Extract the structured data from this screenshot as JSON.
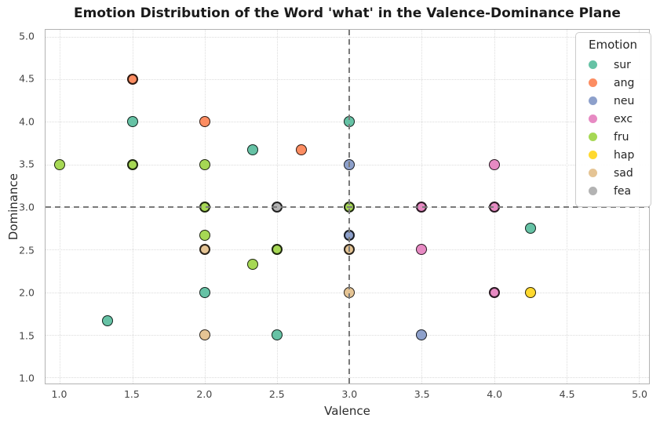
{
  "chart_data": {
    "type": "scatter",
    "title": "Emotion Distribution of the Word 'what' in the Valence-Dominance Plane",
    "xlabel": "Valence",
    "ylabel": "Dominance",
    "xlim": [
      0.9,
      5.07
    ],
    "ylim": [
      0.93,
      5.08
    ],
    "xticks": [
      "1.0",
      "1.5",
      "2.0",
      "2.5",
      "3.0",
      "3.5",
      "4.0",
      "4.5",
      "5.0"
    ],
    "yticks": [
      "1.0",
      "1.5",
      "2.0",
      "2.5",
      "3.0",
      "3.5",
      "4.0",
      "4.5",
      "5.0"
    ],
    "grid": "dotted",
    "grid_color": "#dcdcdc",
    "refline_x": 3.0,
    "refline_y": 3.0,
    "refline_color": "#7a7a7a",
    "marker_edge_color": "#000000",
    "legend": {
      "title": "Emotion",
      "position": "upper-right"
    },
    "series": [
      {
        "name": "sur",
        "color": "#66c2a5",
        "points": [
          {
            "x": 1.5,
            "y": 4.0
          },
          {
            "x": 2.33,
            "y": 3.67
          },
          {
            "x": 3.0,
            "y": 4.0
          },
          {
            "x": 4.25,
            "y": 2.75
          },
          {
            "x": 2.0,
            "y": 2.0
          },
          {
            "x": 1.33,
            "y": 1.67
          },
          {
            "x": 2.5,
            "y": 1.5
          }
        ]
      },
      {
        "name": "ang",
        "color": "#fc8d62",
        "points": [
          {
            "x": 1.5,
            "y": 4.5,
            "bold": true
          },
          {
            "x": 2.0,
            "y": 4.0
          },
          {
            "x": 2.67,
            "y": 3.67
          }
        ]
      },
      {
        "name": "neu",
        "color": "#8da0cb",
        "points": [
          {
            "x": 3.0,
            "y": 3.5
          },
          {
            "x": 3.0,
            "y": 2.67,
            "bold": true
          },
          {
            "x": 3.5,
            "y": 1.5
          }
        ]
      },
      {
        "name": "exc",
        "color": "#e78ac3",
        "points": [
          {
            "x": 4.0,
            "y": 3.5
          },
          {
            "x": 3.5,
            "y": 3.0,
            "bold": true
          },
          {
            "x": 4.0,
            "y": 3.0,
            "bold": true
          },
          {
            "x": 3.5,
            "y": 2.5
          },
          {
            "x": 4.0,
            "y": 2.0,
            "bold": true
          }
        ]
      },
      {
        "name": "fru",
        "color": "#a6d854",
        "points": [
          {
            "x": 1.0,
            "y": 3.5
          },
          {
            "x": 1.5,
            "y": 3.5,
            "bold": true
          },
          {
            "x": 2.0,
            "y": 3.5
          },
          {
            "x": 2.0,
            "y": 3.0,
            "bold": true
          },
          {
            "x": 2.0,
            "y": 2.67
          },
          {
            "x": 2.33,
            "y": 2.33
          },
          {
            "x": 2.5,
            "y": 2.5,
            "bold": true
          },
          {
            "x": 3.0,
            "y": 3.0,
            "bold": true
          }
        ]
      },
      {
        "name": "hap",
        "color": "#ffd92f",
        "points": [
          {
            "x": 4.25,
            "y": 2.0
          }
        ]
      },
      {
        "name": "sad",
        "color": "#e5c494",
        "points": [
          {
            "x": 2.0,
            "y": 2.5,
            "bold": true
          },
          {
            "x": 2.0,
            "y": 1.5
          },
          {
            "x": 3.0,
            "y": 2.5,
            "bold": true
          },
          {
            "x": 3.0,
            "y": 2.0
          }
        ]
      },
      {
        "name": "fea",
        "color": "#b3b3b3",
        "points": [
          {
            "x": 2.5,
            "y": 3.0,
            "bold": true
          }
        ]
      }
    ]
  }
}
